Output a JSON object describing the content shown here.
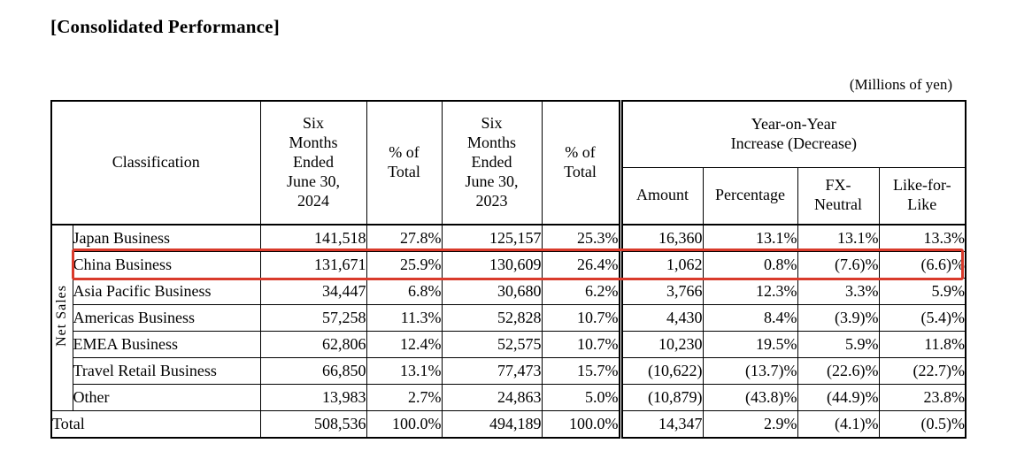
{
  "title": "[Consolidated Performance]",
  "unit_note": "(Millions of yen)",
  "highlight_color": "#d93a2b",
  "table": {
    "row_group_label": "Net Sales",
    "headers": {
      "classification": "Classification",
      "period_2024": "Six\nMonths\nEnded\nJune 30,\n2024",
      "pct_total_2024": "% of\nTotal",
      "period_2023": "Six\nMonths\nEnded\nJune 30,\n2023",
      "pct_total_2023": "% of\nTotal",
      "yoy_group": "Year-on-Year\nIncrease (Decrease)",
      "amount": "Amount",
      "percentage": "Percentage",
      "fx_neutral": "FX-\nNeutral",
      "like_for_like": "Like-for-\nLike"
    },
    "rows": [
      {
        "label": "Japan Business",
        "fy2024": "141,518",
        "pct2024": "27.8%",
        "fy2023": "125,157",
        "pct2023": "25.3%",
        "amount": "16,360",
        "percentage": "13.1%",
        "fx_neutral": "13.1%",
        "like_for_like": "13.3%",
        "highlighted": false
      },
      {
        "label": "China Business",
        "fy2024": "131,671",
        "pct2024": "25.9%",
        "fy2023": "130,609",
        "pct2023": "26.4%",
        "amount": "1,062",
        "percentage": "0.8%",
        "fx_neutral": "(7.6)%",
        "like_for_like": "(6.6)%",
        "highlighted": true
      },
      {
        "label": "Asia Pacific Business",
        "fy2024": "34,447",
        "pct2024": "6.8%",
        "fy2023": "30,680",
        "pct2023": "6.2%",
        "amount": "3,766",
        "percentage": "12.3%",
        "fx_neutral": "3.3%",
        "like_for_like": "5.9%",
        "highlighted": false
      },
      {
        "label": "Americas Business",
        "fy2024": "57,258",
        "pct2024": "11.3%",
        "fy2023": "52,828",
        "pct2023": "10.7%",
        "amount": "4,430",
        "percentage": "8.4%",
        "fx_neutral": "(3.9)%",
        "like_for_like": "(5.4)%",
        "highlighted": false
      },
      {
        "label": "EMEA Business",
        "fy2024": "62,806",
        "pct2024": "12.4%",
        "fy2023": "52,575",
        "pct2023": "10.7%",
        "amount": "10,230",
        "percentage": "19.5%",
        "fx_neutral": "5.9%",
        "like_for_like": "11.8%",
        "highlighted": false
      },
      {
        "label": "Travel Retail Business",
        "fy2024": "66,850",
        "pct2024": "13.1%",
        "fy2023": "77,473",
        "pct2023": "15.7%",
        "amount": "(10,622)",
        "percentage": "(13.7)%",
        "fx_neutral": "(22.6)%",
        "like_for_like": "(22.7)%",
        "highlighted": false
      },
      {
        "label": "Other",
        "fy2024": "13,983",
        "pct2024": "2.7%",
        "fy2023": "24,863",
        "pct2023": "5.0%",
        "amount": "(10,879)",
        "percentage": "(43.8)%",
        "fx_neutral": "(44.9)%",
        "like_for_like": "23.8%",
        "highlighted": false
      }
    ],
    "total_row": {
      "label": "Total",
      "fy2024": "508,536",
      "pct2024": "100.0%",
      "fy2023": "494,189",
      "pct2023": "100.0%",
      "amount": "14,347",
      "percentage": "2.9%",
      "fx_neutral": "(4.1)%",
      "like_for_like": "(0.5)%"
    }
  }
}
